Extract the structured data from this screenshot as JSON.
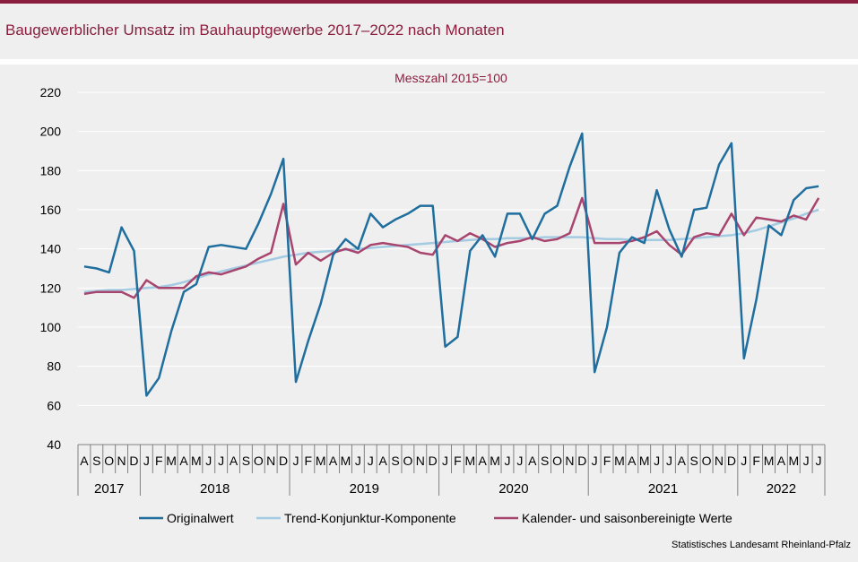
{
  "title": "Baugewerblicher Umsatz im Bauhauptgewerbe 2017–2022 nach Monaten",
  "source": "Statistisches Landesamt Rheinland-Pfalz",
  "colors": {
    "brand": "#8b1e3f",
    "original": "#1f6e9e",
    "trend": "#a3cbe2",
    "adjusted": "#a8456f",
    "grid": "#ffffff"
  },
  "chart_data": {
    "type": "line",
    "subtitle": "Messzahl 2015=100",
    "ylim": [
      40,
      220
    ],
    "yticks": [
      40,
      60,
      80,
      100,
      120,
      140,
      160,
      180,
      200,
      220
    ],
    "grid": "horizontal",
    "legend_position": "bottom",
    "x_month_labels": [
      "A",
      "S",
      "O",
      "N",
      "D",
      "J",
      "F",
      "M",
      "A",
      "M",
      "J",
      "J",
      "A",
      "S",
      "O",
      "N",
      "D",
      "J",
      "F",
      "M",
      "A",
      "M",
      "J",
      "J",
      "A",
      "S",
      "O",
      "N",
      "D",
      "J",
      "F",
      "M",
      "A",
      "M",
      "J",
      "J",
      "A",
      "S",
      "O",
      "N",
      "D",
      "J",
      "F",
      "M",
      "A",
      "M",
      "J",
      "J",
      "A",
      "S",
      "O",
      "N",
      "D",
      "J",
      "F",
      "M",
      "A",
      "M",
      "J",
      "J"
    ],
    "year_groups": [
      {
        "label": "2017",
        "start": 0,
        "end": 4
      },
      {
        "label": "2018",
        "start": 5,
        "end": 16
      },
      {
        "label": "2019",
        "start": 17,
        "end": 28
      },
      {
        "label": "2020",
        "start": 29,
        "end": 40
      },
      {
        "label": "2021",
        "start": 41,
        "end": 52
      },
      {
        "label": "2022",
        "start": 53,
        "end": 59
      }
    ],
    "series": [
      {
        "name": "Originalwert",
        "values": [
          131,
          130,
          128,
          151,
          139,
          65,
          74,
          98,
          118,
          122,
          141,
          142,
          141,
          140,
          153,
          168,
          186,
          72,
          93,
          112,
          137,
          145,
          140,
          158,
          151,
          155,
          158,
          162,
          162,
          90,
          95,
          139,
          147,
          136,
          158,
          158,
          145,
          158,
          162,
          182,
          199,
          77,
          100,
          138,
          146,
          143,
          170,
          150,
          136,
          160,
          161,
          183,
          194,
          84,
          114,
          152,
          147,
          165,
          171,
          172
        ]
      },
      {
        "name": "Trend-Konjunktur-Komponente",
        "values": [
          118,
          118.5,
          119,
          119,
          119.5,
          120,
          120.5,
          121.5,
          123,
          125,
          127,
          128.5,
          130,
          131.5,
          133,
          134.5,
          136,
          137,
          138,
          138.5,
          139,
          139.5,
          140,
          140.5,
          141,
          141.5,
          142,
          142.5,
          143,
          143.5,
          144,
          144.5,
          145,
          145,
          145.5,
          145.5,
          145.5,
          146,
          146,
          146,
          146,
          145.5,
          145,
          145,
          144.5,
          144.5,
          144.5,
          144.5,
          145,
          145.5,
          146,
          146.5,
          147,
          148,
          149.5,
          151.5,
          153.5,
          155.5,
          158,
          160
        ]
      },
      {
        "name": "Kalender- und saisonbereinigte Werte",
        "values": [
          117,
          118,
          118,
          118,
          115,
          124,
          120,
          120,
          120,
          126,
          128,
          127,
          129,
          131,
          135,
          138,
          163,
          132,
          138,
          134,
          138,
          140,
          138,
          142,
          143,
          142,
          141,
          138,
          137,
          147,
          144,
          148,
          145,
          141,
          143,
          144,
          146,
          144,
          145,
          148,
          166,
          143,
          143,
          143,
          144,
          146,
          149,
          142,
          137,
          146,
          148,
          147,
          158,
          147,
          156,
          155,
          154,
          157,
          155,
          166
        ]
      }
    ]
  }
}
